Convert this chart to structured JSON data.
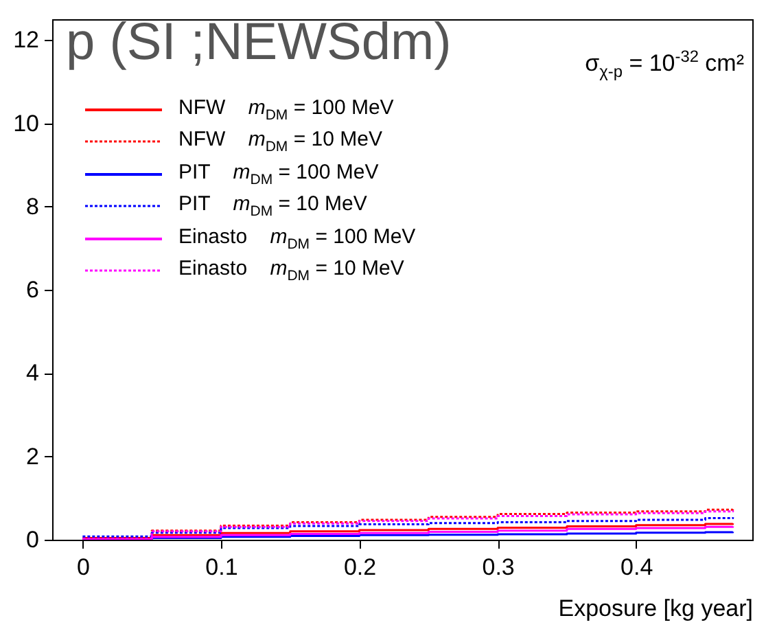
{
  "chart_data": {
    "type": "step",
    "title": "p (SI ;NEWSdm)",
    "xlabel": "Exposure [kg year]",
    "annotations": [
      "σ$_{χ-p}$ = 10$^{-32}$ cm²"
    ],
    "x": [
      0,
      0.05,
      0.1,
      0.15,
      0.2,
      0.25,
      0.3,
      0.35,
      0.4,
      0.45,
      0.47
    ],
    "xlim": [
      -0.022,
      0.484
    ],
    "xticks": [
      0,
      0.1,
      0.2,
      0.3,
      0.4
    ],
    "ylim": [
      0,
      12.5
    ],
    "yticks": [
      0,
      2,
      4,
      6,
      8,
      10,
      12
    ],
    "grid": false,
    "legend": "top left",
    "series": [
      {
        "name": "NFW    m$_{DM}$ = 100 MeV",
        "color": "#ff0000",
        "line_style": "solid",
        "values": [
          0.04,
          0.11,
          0.16,
          0.2,
          0.23,
          0.26,
          0.29,
          0.32,
          0.35,
          0.38,
          0.39
        ]
      },
      {
        "name": "NFW    m$_{DM}$ = 10 MeV",
        "color": "#ff0000",
        "line_style": "dotted",
        "values": [
          0.02,
          0.22,
          0.34,
          0.42,
          0.48,
          0.55,
          0.62,
          0.65,
          0.68,
          0.72,
          0.73
        ]
      },
      {
        "name": "PIT    m$_{DM}$ = 100 MeV",
        "color": "#0000ff",
        "line_style": "solid",
        "values": [
          0,
          0.04,
          0.07,
          0.09,
          0.11,
          0.12,
          0.13,
          0.15,
          0.17,
          0.18,
          0.19
        ]
      },
      {
        "name": "PIT    m$_{DM}$ = 10 MeV",
        "color": "#0000ff",
        "line_style": "dotted",
        "values": [
          0.08,
          0.17,
          0.28,
          0.33,
          0.37,
          0.4,
          0.42,
          0.45,
          0.48,
          0.52,
          0.54
        ]
      },
      {
        "name": "Einasto    m$_{DM}$ = 100 MeV",
        "color": "#ff00ff",
        "line_style": "solid",
        "values": [
          0.01,
          0.07,
          0.11,
          0.14,
          0.16,
          0.19,
          0.22,
          0.26,
          0.28,
          0.31,
          0.32
        ]
      },
      {
        "name": "Einasto    m$_{DM}$ = 10 MeV",
        "color": "#ff00ff",
        "line_style": "dotted",
        "values": [
          0.02,
          0.2,
          0.31,
          0.39,
          0.45,
          0.51,
          0.57,
          0.61,
          0.64,
          0.68,
          0.7
        ]
      }
    ]
  }
}
